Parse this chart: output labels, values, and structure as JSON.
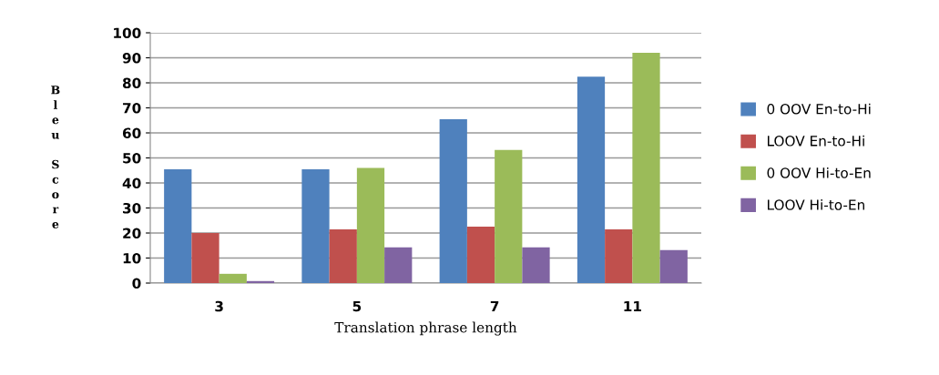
{
  "chart_data": {
    "type": "bar",
    "xlabel": "Translation phrase length",
    "ylabel": "Bleu Score",
    "categories": [
      "3",
      "5",
      "7",
      "11"
    ],
    "series": [
      {
        "name": "0 OOV En-to-Hi",
        "color": "#4f81bd",
        "values": [
          45.5,
          45.5,
          65.5,
          82.5
        ]
      },
      {
        "name": "LOOV En-to-Hi",
        "color": "#c0504d",
        "values": [
          20,
          21.5,
          22.5,
          21.5
        ]
      },
      {
        "name": "0 OOV Hi-to-En",
        "color": "#9bbb59",
        "values": [
          3.7,
          46,
          53.2,
          92
        ]
      },
      {
        "name": "LOOV Hi-to-En",
        "color": "#8064a2",
        "values": [
          0.8,
          14.3,
          14.3,
          13.2
        ]
      }
    ],
    "ylim": [
      0,
      100
    ],
    "yticks": [
      0,
      10,
      20,
      30,
      40,
      50,
      60,
      70,
      80,
      90,
      100
    ],
    "grid": "y",
    "legend": "right"
  }
}
